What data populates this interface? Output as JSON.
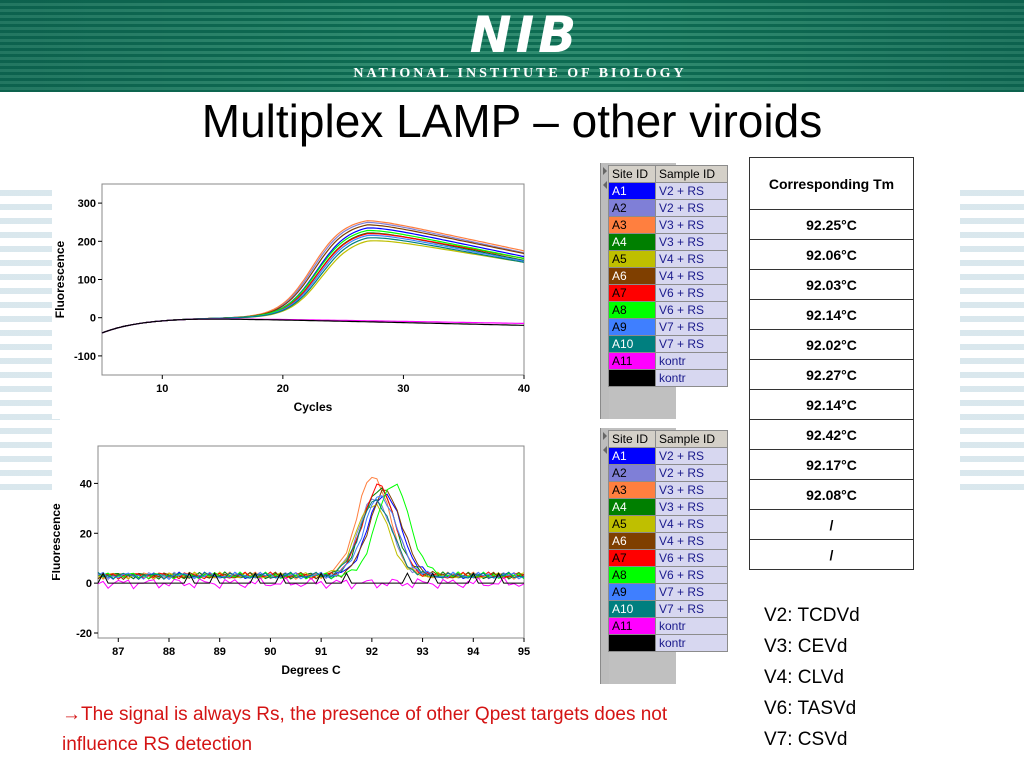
{
  "header": {
    "logo_text": "NIB",
    "logo_subtitle": "NATIONAL INSTITUTE OF BIOLOGY",
    "band_color": "#0d6b52"
  },
  "title": "Multiplex LAMP – other viroids",
  "legend_headers": {
    "site": "Site ID",
    "sample": "Sample ID"
  },
  "legend_rows": [
    {
      "site": "A1",
      "sample": "V2 + RS",
      "color": "#0000ff"
    },
    {
      "site": "A2",
      "sample": "V2 + RS",
      "color": "#7f7fd7"
    },
    {
      "site": "A3",
      "sample": "V3 + RS",
      "color": "#ff7f3f"
    },
    {
      "site": "A4",
      "sample": "V3 + RS",
      "color": "#007f00"
    },
    {
      "site": "A5",
      "sample": "V4 + RS",
      "color": "#bfbf00"
    },
    {
      "site": "A6",
      "sample": "V4 + RS",
      "color": "#7f3f00"
    },
    {
      "site": "A7",
      "sample": "V6 + RS",
      "color": "#ff0000"
    },
    {
      "site": "A8",
      "sample": "V6 + RS",
      "color": "#00ff00"
    },
    {
      "site": "A9",
      "sample": "V7 + RS",
      "color": "#3f7fff"
    },
    {
      "site": "A10",
      "sample": "V7 + RS",
      "color": "#007f7f"
    },
    {
      "site": "A11",
      "sample": "kontr",
      "color": "#ff00ff"
    },
    {
      "site": "",
      "sample": "kontr",
      "color": "#000000"
    }
  ],
  "tm_table": {
    "header": "Corresponding Tm",
    "values": [
      "92.25°C",
      "92.06°C",
      "92.03°C",
      "92.14°C",
      "92.02°C",
      "92.27°C",
      "92.14°C",
      "92.42°C",
      "92.17°C",
      "92.08°C",
      "/",
      "/"
    ]
  },
  "virus_list": [
    "V2: TCDVd",
    "V3: CEVd",
    "V4: CLVd",
    "V6: TASVd",
    "V7: CSVd"
  ],
  "note": "→The signal is always Rs, the presence of other Qpest targets does not influence RS detection",
  "chart_data": [
    {
      "type": "line",
      "xlabel": "Cycles",
      "ylabel": "Fluorescence",
      "xlim": [
        5,
        40
      ],
      "ylim": [
        -150,
        350
      ],
      "xticks": [
        10,
        20,
        30,
        40
      ],
      "yticks": [
        -100,
        0,
        100,
        200,
        300
      ],
      "series": [
        {
          "color": "#0000ff",
          "plateau": 245,
          "end": 160,
          "t50": 22.8
        },
        {
          "color": "#7f7fd7",
          "plateau": 258,
          "end": 170,
          "t50": 22.5
        },
        {
          "color": "#ff7f3f",
          "plateau": 262,
          "end": 175,
          "t50": 22.4
        },
        {
          "color": "#007f00",
          "plateau": 232,
          "end": 150,
          "t50": 22.9
        },
        {
          "color": "#bfbf00",
          "plateau": 212,
          "end": 145,
          "t50": 23.2
        },
        {
          "color": "#7f3f00",
          "plateau": 252,
          "end": 168,
          "t50": 22.6
        },
        {
          "color": "#ff0000",
          "plateau": 230,
          "end": 155,
          "t50": 22.9
        },
        {
          "color": "#00ff00",
          "plateau": 238,
          "end": 155,
          "t50": 22.8
        },
        {
          "color": "#3f7fff",
          "plateau": 226,
          "end": 148,
          "t50": 23.0
        },
        {
          "color": "#007f7f",
          "plateau": 220,
          "end": 145,
          "t50": 23.1
        },
        {
          "color": "#ff00ff",
          "plateau": 0,
          "end": -15,
          "t50": null
        },
        {
          "color": "#000000",
          "plateau": 0,
          "end": -20,
          "t50": null
        }
      ]
    },
    {
      "type": "line",
      "xlabel": "Degrees C",
      "ylabel": "Fluorescence",
      "xlim": [
        86.6,
        95
      ],
      "ylim": [
        -22,
        55
      ],
      "xticks": [
        87,
        88,
        89,
        90,
        91,
        92,
        93,
        94,
        95
      ],
      "yticks": [
        -20,
        0,
        20,
        40
      ],
      "series": [
        {
          "color": "#0000ff",
          "peak_x": 92.25,
          "peak_y": 33
        },
        {
          "color": "#7f7fd7",
          "peak_x": 92.06,
          "peak_y": 31
        },
        {
          "color": "#ff7f3f",
          "peak_x": 92.03,
          "peak_y": 40
        },
        {
          "color": "#007f00",
          "peak_x": 92.14,
          "peak_y": 35
        },
        {
          "color": "#bfbf00",
          "peak_x": 92.02,
          "peak_y": 29
        },
        {
          "color": "#7f3f00",
          "peak_x": 92.27,
          "peak_y": 34
        },
        {
          "color": "#ff0000",
          "peak_x": 92.14,
          "peak_y": 36
        },
        {
          "color": "#00ff00",
          "peak_x": 92.42,
          "peak_y": 37
        },
        {
          "color": "#3f7fff",
          "peak_x": 92.17,
          "peak_y": 32
        },
        {
          "color": "#007f7f",
          "peak_x": 92.08,
          "peak_y": 30
        },
        {
          "color": "#ff00ff",
          "peak_x": null,
          "peak_y": 0
        },
        {
          "color": "#000000",
          "peak_x": null,
          "peak_y": 0
        }
      ]
    }
  ]
}
